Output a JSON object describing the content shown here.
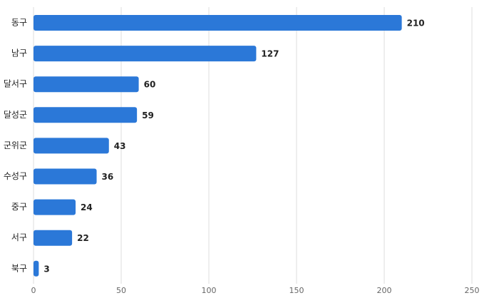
{
  "chart_data": {
    "type": "hbar",
    "categories": [
      "동구",
      "남구",
      "달서구",
      "달성군",
      "군위군",
      "수성구",
      "중구",
      "서구",
      "북구"
    ],
    "values": [
      210,
      127,
      60,
      59,
      43,
      36,
      24,
      22,
      3
    ],
    "color": "#2b78d8",
    "xlim": [
      0,
      250
    ],
    "xticks": [
      0,
      50,
      100,
      150,
      200,
      250
    ],
    "grid": true
  }
}
